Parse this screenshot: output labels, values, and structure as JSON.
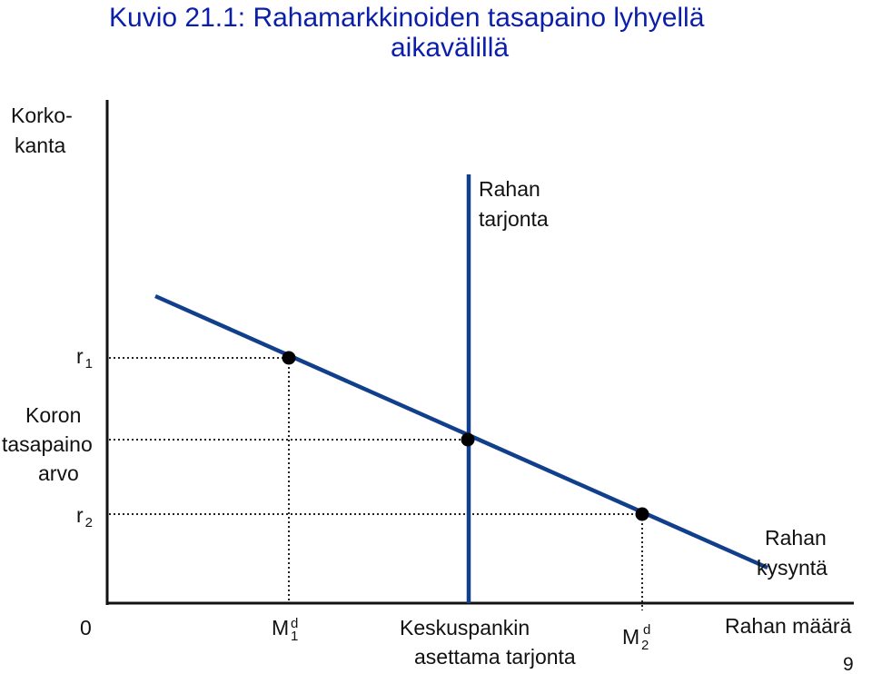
{
  "title": {
    "line1": "Kuvio 21.1: Rahamarkkinoiden tasapaino lyhyellä",
    "line2": "aikavälillä"
  },
  "y_axis": {
    "label_line1": "Korko-",
    "label_line2": "kanta",
    "r1": {
      "base": "r",
      "sub": "1"
    },
    "equilibrium": {
      "line1": "Koron",
      "line2": "tasapaino",
      "line3": "arvo"
    },
    "r2": {
      "base": "r",
      "sub": "2"
    }
  },
  "x_axis": {
    "origin": "0",
    "m1": {
      "base": "M",
      "sup": "d",
      "sub": "1"
    },
    "central_bank": {
      "line1": "Keskuspankin",
      "line2": "asettama tarjonta"
    },
    "m2": {
      "base": "M",
      "sup": "d",
      "sub": "2"
    },
    "label": "Rahan määrä"
  },
  "supply": {
    "line1": "Rahan",
    "line2": "tarjonta"
  },
  "demand": {
    "line1": "Rahan",
    "line2": "kysyntä"
  },
  "page_number": "9",
  "colors": {
    "title": "#0a1eaa",
    "curve": "#123f8c",
    "axis": "#111111"
  }
}
